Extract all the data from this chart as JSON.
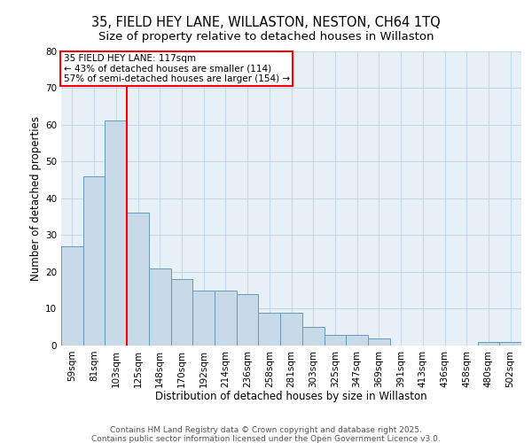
{
  "title1": "35, FIELD HEY LANE, WILLASTON, NESTON, CH64 1TQ",
  "title2": "Size of property relative to detached houses in Willaston",
  "xlabel": "Distribution of detached houses by size in Willaston",
  "ylabel": "Number of detached properties",
  "categories": [
    "59sqm",
    "81sqm",
    "103sqm",
    "125sqm",
    "148sqm",
    "170sqm",
    "192sqm",
    "214sqm",
    "236sqm",
    "258sqm",
    "281sqm",
    "303sqm",
    "325sqm",
    "347sqm",
    "369sqm",
    "391sqm",
    "413sqm",
    "436sqm",
    "458sqm",
    "480sqm",
    "502sqm"
  ],
  "values": [
    27,
    46,
    61,
    36,
    21,
    18,
    15,
    15,
    14,
    9,
    9,
    5,
    3,
    3,
    2,
    0,
    0,
    0,
    0,
    1,
    1
  ],
  "bar_color": "#c8d9e8",
  "bar_edge_color": "#6699bb",
  "grid_color": "#c5d8e8",
  "background_color": "#e8f0f7",
  "vline_x": 2.5,
  "vline_color": "red",
  "annotation_text": "35 FIELD HEY LANE: 117sqm\n← 43% of detached houses are smaller (114)\n57% of semi-detached houses are larger (154) →",
  "annotation_box_color": "white",
  "annotation_box_edge_color": "red",
  "ylim": [
    0,
    80
  ],
  "yticks": [
    0,
    10,
    20,
    30,
    40,
    50,
    60,
    70,
    80
  ],
  "footer1": "Contains HM Land Registry data © Crown copyright and database right 2025.",
  "footer2": "Contains public sector information licensed under the Open Government Licence v3.0.",
  "title_fontsize": 10.5,
  "subtitle_fontsize": 9.5,
  "axis_fontsize": 8.5,
  "tick_fontsize": 7.5,
  "annotation_fontsize": 7.5,
  "footer_fontsize": 6.5
}
